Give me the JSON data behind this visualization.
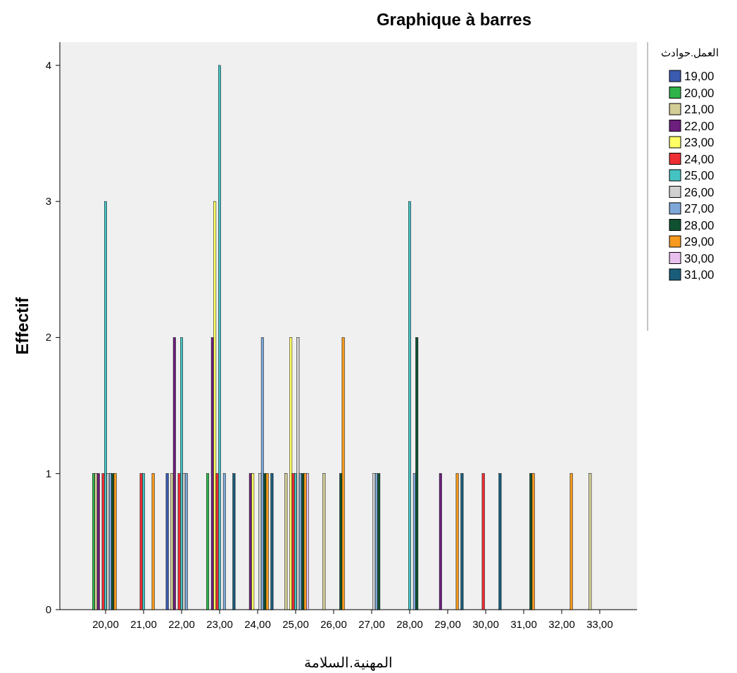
{
  "chart_data": {
    "type": "bar",
    "title": "Graphique à barres",
    "xlabel": "المهنية.السلامة",
    "ylabel": "Effectif",
    "legend_title": "العمل.حوادث",
    "categories": [
      "20,00",
      "21,00",
      "22,00",
      "23,00",
      "24,00",
      "25,00",
      "26,00",
      "27,00",
      "28,00",
      "29,00",
      "30,00",
      "31,00",
      "32,00",
      "33,00"
    ],
    "ylim": [
      0,
      4.17
    ],
    "yticks": [
      0,
      1,
      2,
      3,
      4
    ],
    "grid": false,
    "legend": "right",
    "series": [
      {
        "name": "19,00",
        "color": "#3a5bb0",
        "values": [
          0,
          0,
          1,
          0,
          0,
          0,
          0,
          0,
          0,
          0,
          0,
          0,
          0,
          0
        ]
      },
      {
        "name": "20,00",
        "color": "#2db34a",
        "values": [
          1,
          0,
          0,
          1,
          0,
          0,
          0,
          0,
          0,
          0,
          0,
          0,
          0,
          0
        ]
      },
      {
        "name": "21,00",
        "color": "#d3cd96",
        "values": [
          1,
          0,
          1,
          0,
          0,
          1,
          1,
          0,
          0,
          0,
          0,
          0,
          0,
          1
        ]
      },
      {
        "name": "22,00",
        "color": "#6c1f7d",
        "values": [
          1,
          0,
          2,
          2,
          1,
          0,
          0,
          0,
          0,
          1,
          0,
          0,
          0,
          0
        ]
      },
      {
        "name": "23,00",
        "color": "#ffff66",
        "values": [
          0,
          0,
          0,
          3,
          1,
          2,
          0,
          0,
          0,
          0,
          0,
          0,
          0,
          0
        ]
      },
      {
        "name": "24,00",
        "color": "#ee2e34",
        "values": [
          1,
          1,
          1,
          1,
          0,
          1,
          0,
          0,
          0,
          0,
          1,
          0,
          0,
          0
        ]
      },
      {
        "name": "25,00",
        "color": "#45c3c3",
        "values": [
          3,
          1,
          2,
          4,
          0,
          1,
          0,
          0,
          3,
          0,
          0,
          0,
          0,
          0
        ]
      },
      {
        "name": "26,00",
        "color": "#d0d0d0",
        "values": [
          1,
          0,
          1,
          0,
          1,
          2,
          0,
          1,
          0,
          0,
          0,
          0,
          0,
          0
        ]
      },
      {
        "name": "27,00",
        "color": "#7fa8d8",
        "values": [
          1,
          0,
          1,
          1,
          2,
          1,
          0,
          1,
          1,
          0,
          0,
          0,
          0,
          0
        ]
      },
      {
        "name": "28,00",
        "color": "#0f5130",
        "values": [
          1,
          0,
          0,
          0,
          1,
          1,
          1,
          1,
          2,
          0,
          0,
          1,
          0,
          0
        ]
      },
      {
        "name": "29,00",
        "color": "#f79a1e",
        "values": [
          1,
          1,
          0,
          0,
          1,
          1,
          2,
          0,
          0,
          1,
          0,
          1,
          1,
          0
        ]
      },
      {
        "name": "30,00",
        "color": "#e8c0ee",
        "values": [
          0,
          0,
          0,
          0,
          0,
          1,
          0,
          0,
          0,
          0,
          0,
          0,
          0,
          0
        ]
      },
      {
        "name": "31,00",
        "color": "#1a5d7a",
        "values": [
          0,
          0,
          0,
          1,
          1,
          0,
          0,
          0,
          0,
          1,
          1,
          0,
          0,
          0
        ]
      }
    ]
  }
}
